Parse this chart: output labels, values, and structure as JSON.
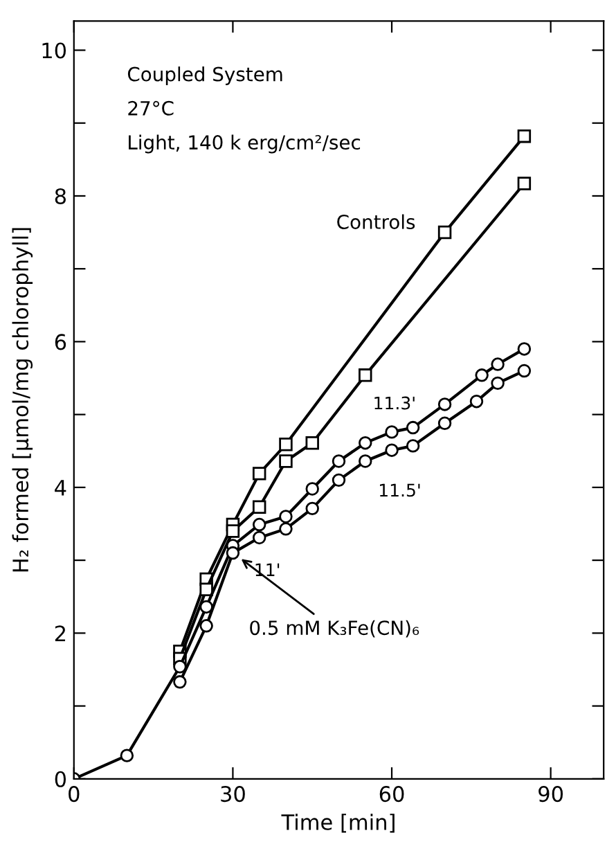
{
  "chart_data": {
    "type": "line",
    "xlabel": "Time [min]",
    "ylabel": "H₂ formed [μmol/mg chlorophyll]",
    "xlim": [
      0,
      100
    ],
    "ylim": [
      0,
      10.4
    ],
    "xticks": [
      0,
      30,
      60,
      90
    ],
    "yticks": [
      0,
      {
        "value": 1,
        "label": null
      },
      2,
      {
        "value": 3,
        "label": null
      },
      4,
      {
        "value": 5,
        "label": null
      },
      6,
      {
        "value": 7,
        "label": null
      },
      8,
      {
        "value": 9,
        "label": null
      },
      10
    ],
    "grid": false,
    "legend": false,
    "line_style": "solid",
    "series": [
      {
        "color": "#000000",
        "marker": "square",
        "x": [
          20,
          25,
          30,
          35,
          40,
          70,
          85
        ],
        "values": [
          1.75,
          2.74,
          3.49,
          4.19,
          4.59,
          7.5,
          8.82
        ]
      },
      {
        "color": "#000000",
        "marker": "square",
        "x": [
          20,
          25,
          30,
          35,
          40,
          45,
          55,
          85
        ],
        "values": [
          1.65,
          2.6,
          3.4,
          3.73,
          4.36,
          4.61,
          5.54,
          8.17
        ]
      },
      {
        "color": "#000000",
        "marker": "circle",
        "x": [
          0,
          10,
          20,
          25,
          30,
          35,
          40,
          45,
          50,
          55,
          60,
          64,
          70,
          77,
          80,
          85
        ],
        "values": [
          0,
          0.32,
          1.54,
          2.36,
          3.2,
          3.49,
          3.6,
          3.98,
          4.36,
          4.61,
          4.76,
          4.82,
          5.14,
          5.54,
          5.69,
          5.9
        ]
      },
      {
        "color": "#000000",
        "marker": "circle",
        "x": [
          20,
          25,
          30,
          35,
          40,
          45,
          50,
          55,
          60,
          64,
          70,
          76,
          80,
          85
        ],
        "values": [
          1.33,
          2.1,
          3.1,
          3.31,
          3.43,
          3.71,
          4.1,
          4.36,
          4.51,
          4.57,
          4.88,
          5.18,
          5.43,
          5.6
        ]
      }
    ],
    "annotations": [
      "Coupled System",
      "27°C",
      "Light, 140 k erg/cm²/sec",
      "Controls",
      "11'",
      "11.3'",
      "11.5'",
      {
        "text": "0.5 mM K₃Fe(CN)₆",
        "x": 31,
        "y": 3.05
      }
    ]
  }
}
